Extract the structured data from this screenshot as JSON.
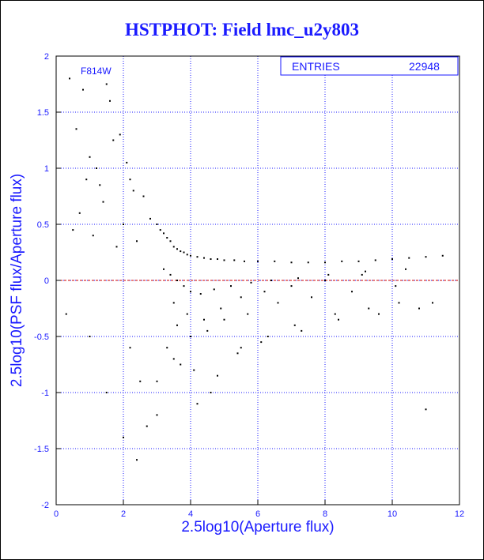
{
  "title": "HSTPHOT: Field lmc_u2y803",
  "colors": {
    "text": "#1a1aff",
    "grid": "#1a1aff",
    "points": "#000000",
    "zero_line": "#cc0000"
  },
  "stats_box": {
    "label": "ENTRIES",
    "value": "22948"
  },
  "annotation": "F814W",
  "chart_data": {
    "type": "scatter",
    "title": "HSTPHOT: Field lmc_u2y803",
    "xlabel": "2.5log10(Aperture flux)",
    "ylabel": "2.5log10(PSF flux/Aperture flux)",
    "xlim": [
      0,
      12
    ],
    "ylim": [
      -2,
      2
    ],
    "xticks": [
      0,
      2,
      4,
      6,
      8,
      10,
      12
    ],
    "yticks": [
      -2,
      -1.5,
      -1,
      -0.5,
      0,
      0.5,
      1,
      1.5,
      2
    ],
    "xtick_labels": [
      "0",
      "2",
      "4",
      "6",
      "8",
      "10",
      "12"
    ],
    "ytick_labels": [
      "-2",
      "-1.5",
      "-1",
      "-0.5",
      "0",
      "0.5",
      "1",
      "1.5",
      "2"
    ],
    "grid": true,
    "reference_line_y": 0,
    "entries": 22948,
    "series": [
      {
        "x": [
          0.4,
          0.6,
          0.8,
          1.0,
          1.2,
          1.5,
          1.7,
          1.9,
          2.1,
          2.3,
          0.5,
          0.9,
          1.3,
          1.6,
          2.0,
          2.4,
          0.7,
          1.1,
          1.4,
          1.8,
          2.2,
          2.6,
          2.8,
          3.0,
          3.1,
          3.2,
          3.3,
          3.4,
          3.5,
          3.6,
          3.7,
          3.8,
          3.9,
          4.0,
          4.2,
          4.4,
          4.6,
          4.8,
          5.0,
          5.3,
          5.6,
          6.0,
          6.5,
          7.0,
          7.5,
          8.0,
          8.5,
          9.0,
          9.5,
          10.0,
          10.5,
          11.0,
          11.5,
          3.2,
          3.4,
          3.6,
          3.8,
          4.0,
          4.3,
          4.7,
          5.2,
          5.8,
          6.4,
          7.2,
          8.1,
          9.2,
          10.4,
          3.5,
          3.9,
          4.4,
          4.9,
          5.5,
          6.2,
          7.0,
          8.0,
          9.1,
          3.6,
          4.0,
          4.5,
          5.0,
          5.7,
          6.6,
          7.6,
          8.8,
          10.1,
          2.2,
          2.5,
          3.0,
          3.5,
          4.1,
          4.6,
          5.4,
          6.1,
          7.3,
          8.4,
          9.6,
          10.8,
          11.2,
          0.3,
          1.0,
          1.5,
          2.0,
          2.4,
          2.7,
          3.0,
          3.3,
          3.7,
          4.2,
          4.8,
          5.5,
          6.3,
          7.1,
          8.3,
          9.3,
          10.2,
          11.0
        ],
        "y": [
          1.8,
          1.35,
          1.7,
          1.1,
          1.0,
          1.75,
          1.25,
          1.3,
          1.05,
          0.8,
          0.45,
          0.9,
          0.85,
          1.6,
          0.5,
          0.35,
          0.6,
          0.4,
          0.7,
          0.3,
          0.9,
          0.75,
          0.55,
          0.5,
          0.45,
          0.42,
          0.38,
          0.35,
          0.3,
          0.28,
          0.26,
          0.25,
          0.23,
          0.22,
          0.21,
          0.2,
          0.19,
          0.19,
          0.18,
          0.18,
          0.17,
          0.17,
          0.17,
          0.16,
          0.16,
          0.16,
          0.17,
          0.17,
          0.18,
          0.19,
          0.2,
          0.21,
          0.22,
          0.1,
          0.05,
          0.0,
          -0.05,
          -0.1,
          -0.12,
          -0.08,
          -0.05,
          -0.02,
          0.0,
          0.02,
          0.05,
          0.08,
          0.1,
          -0.2,
          -0.3,
          -0.35,
          -0.25,
          -0.15,
          -0.1,
          -0.05,
          0.0,
          0.05,
          -0.4,
          -0.5,
          -0.45,
          -0.35,
          -0.3,
          -0.2,
          -0.15,
          -0.1,
          -0.05,
          -0.6,
          -0.9,
          -1.2,
          -0.7,
          -0.8,
          -1.0,
          -0.65,
          -0.55,
          -0.45,
          -0.35,
          -0.3,
          -0.25,
          -0.2,
          -0.3,
          -0.5,
          -1.0,
          -1.4,
          -1.6,
          -1.3,
          -0.9,
          -0.6,
          -0.75,
          -1.1,
          -0.85,
          -0.6,
          -0.5,
          -0.4,
          -0.3,
          -0.25,
          -0.2,
          -1.15
        ]
      }
    ]
  }
}
